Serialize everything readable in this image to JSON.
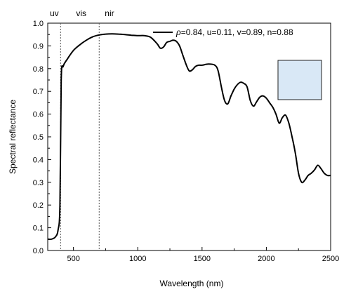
{
  "chart_data": {
    "type": "line",
    "xlabel": "Wavelength (nm)",
    "ylabel": "Spectral reflectance",
    "xlim": [
      300,
      2500
    ],
    "ylim": [
      0.0,
      1.0
    ],
    "x_ticks": [
      500,
      1000,
      1500,
      2000,
      2500
    ],
    "y_ticks": [
      0.0,
      0.1,
      0.2,
      0.3,
      0.4,
      0.5,
      0.6,
      0.7,
      0.8,
      0.9,
      1.0
    ],
    "grid": false,
    "legend_position": "top-right",
    "region_markers": [
      {
        "label": "uv",
        "boundary_x": 400
      },
      {
        "label": "vis",
        "boundary_x": 700
      },
      {
        "label": "nir"
      }
    ],
    "legend_symbol": "ρ",
    "legend_rest": "=0.84, u=0.11, v=0.89, n=0.88",
    "series": [
      {
        "color": "#000000",
        "x": [
          300,
          330,
          360,
          380,
          395,
          405,
          420,
          450,
          500,
          550,
          600,
          650,
          700,
          750,
          800,
          850,
          900,
          950,
          1000,
          1050,
          1100,
          1150,
          1175,
          1200,
          1225,
          1250,
          1275,
          1300,
          1325,
          1350,
          1375,
          1400,
          1425,
          1450,
          1475,
          1500,
          1550,
          1600,
          1625,
          1650,
          1675,
          1700,
          1725,
          1750,
          1775,
          1800,
          1825,
          1850,
          1875,
          1900,
          1925,
          1950,
          1975,
          2000,
          2025,
          2050,
          2075,
          2100,
          2125,
          2150,
          2175,
          2200,
          2225,
          2250,
          2275,
          2300,
          2325,
          2350,
          2375,
          2400,
          2425,
          2450,
          2475,
          2500
        ],
        "y": [
          0.05,
          0.05,
          0.06,
          0.09,
          0.2,
          0.75,
          0.81,
          0.84,
          0.88,
          0.905,
          0.925,
          0.94,
          0.948,
          0.952,
          0.953,
          0.952,
          0.95,
          0.947,
          0.945,
          0.945,
          0.938,
          0.91,
          0.89,
          0.895,
          0.915,
          0.92,
          0.925,
          0.92,
          0.9,
          0.86,
          0.82,
          0.79,
          0.795,
          0.81,
          0.815,
          0.815,
          0.82,
          0.815,
          0.79,
          0.72,
          0.66,
          0.645,
          0.68,
          0.71,
          0.73,
          0.74,
          0.735,
          0.72,
          0.66,
          0.635,
          0.655,
          0.675,
          0.68,
          0.67,
          0.65,
          0.63,
          0.6,
          0.56,
          0.585,
          0.595,
          0.56,
          0.5,
          0.43,
          0.34,
          0.3,
          0.31,
          0.33,
          0.34,
          0.355,
          0.375,
          0.36,
          0.34,
          0.33,
          0.33
        ]
      }
    ]
  }
}
